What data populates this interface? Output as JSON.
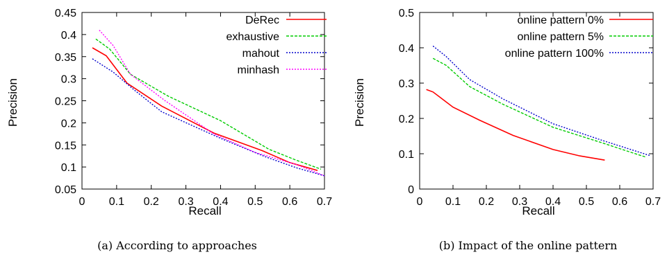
{
  "chart_data": [
    {
      "type": "line",
      "caption": "(a) According to approaches",
      "xlabel": "Recall",
      "ylabel": "Precision",
      "xlim": [
        0,
        0.7
      ],
      "ylim": [
        0.05,
        0.45
      ],
      "xticks": [
        0,
        0.1,
        0.2,
        0.3,
        0.4,
        0.5,
        0.6,
        0.7
      ],
      "yticks": [
        0.05,
        0.1,
        0.15,
        0.2,
        0.25,
        0.3,
        0.35,
        0.4,
        0.45
      ],
      "grid": false,
      "legend_position": "top-right",
      "series": [
        {
          "name": "DeRec",
          "color": "#ff0000",
          "dash": "solid",
          "x": [
            0.03,
            0.07,
            0.13,
            0.23,
            0.38,
            0.52,
            0.6,
            0.68
          ],
          "y": [
            0.37,
            0.352,
            0.29,
            0.238,
            0.177,
            0.137,
            0.11,
            0.092
          ]
        },
        {
          "name": "exhaustive",
          "color": "#00cc00",
          "dash": "dashed",
          "x": [
            0.04,
            0.08,
            0.14,
            0.25,
            0.4,
            0.54,
            0.62,
            0.69
          ],
          "y": [
            0.39,
            0.367,
            0.31,
            0.26,
            0.205,
            0.14,
            0.115,
            0.095
          ]
        },
        {
          "name": "mahout",
          "color": "#0000cc",
          "dash": "dotted",
          "x": [
            0.03,
            0.09,
            0.15,
            0.23,
            0.4,
            0.53,
            0.62,
            0.7
          ],
          "y": [
            0.345,
            0.315,
            0.275,
            0.225,
            0.165,
            0.123,
            0.098,
            0.08
          ]
        },
        {
          "name": "minhash",
          "color": "#ff00ff",
          "dash": "dotted",
          "x": [
            0.05,
            0.09,
            0.14,
            0.24,
            0.38,
            0.5,
            0.62,
            0.7
          ],
          "y": [
            0.41,
            0.375,
            0.31,
            0.25,
            0.175,
            0.133,
            0.105,
            0.08
          ]
        }
      ]
    },
    {
      "type": "line",
      "caption": "(b) Impact of the online pattern",
      "xlabel": "Recall",
      "ylabel": "Precision",
      "xlim": [
        0,
        0.7
      ],
      "ylim": [
        0,
        0.5
      ],
      "xticks": [
        0,
        0.1,
        0.2,
        0.3,
        0.4,
        0.5,
        0.6,
        0.7
      ],
      "yticks": [
        0,
        0.1,
        0.2,
        0.3,
        0.4,
        0.5
      ],
      "grid": false,
      "legend_position": "top-right",
      "series": [
        {
          "name": "online pattern 0%",
          "color": "#ff0000",
          "dash": "solid",
          "x": [
            0.02,
            0.04,
            0.1,
            0.18,
            0.28,
            0.4,
            0.48,
            0.555
          ],
          "y": [
            0.282,
            0.275,
            0.232,
            0.195,
            0.152,
            0.112,
            0.094,
            0.082
          ]
        },
        {
          "name": "online pattern 5%",
          "color": "#00cc00",
          "dash": "dashed",
          "x": [
            0.04,
            0.08,
            0.15,
            0.25,
            0.4,
            0.55,
            0.63,
            0.68
          ],
          "y": [
            0.37,
            0.35,
            0.29,
            0.24,
            0.175,
            0.13,
            0.105,
            0.09
          ]
        },
        {
          "name": "online pattern 100%",
          "color": "#0000cc",
          "dash": "dotted",
          "x": [
            0.04,
            0.08,
            0.15,
            0.25,
            0.4,
            0.55,
            0.63,
            0.69
          ],
          "y": [
            0.405,
            0.375,
            0.31,
            0.255,
            0.185,
            0.137,
            0.113,
            0.095
          ]
        }
      ]
    }
  ]
}
